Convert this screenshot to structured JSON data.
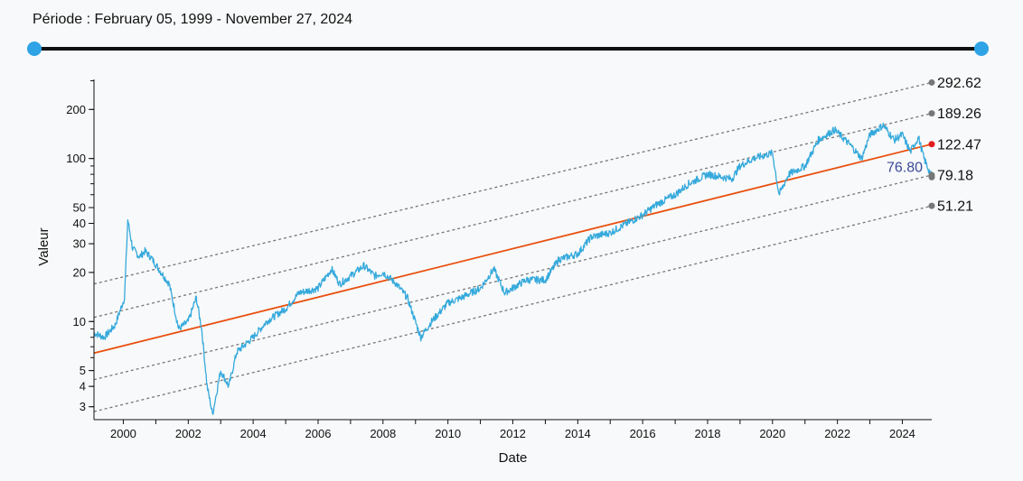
{
  "period": {
    "label": "Période : February 05, 1999 - November 27, 2024"
  },
  "colors": {
    "price": "#34a9dc",
    "regression": "#e8500f",
    "band": "#777777",
    "top_marker": "#e21b1b",
    "current_label": "#3a4a9a",
    "slider_handle": "#2ea3e6"
  },
  "chart_data": {
    "type": "line",
    "title": "",
    "xlabel": "Date",
    "ylabel": "Valeur",
    "yscale": "log",
    "xlim": [
      "1999-02-05",
      "2024-11-27"
    ],
    "ylim": [
      2.5,
      330
    ],
    "x_ticks": [
      "2000",
      "2002",
      "2004",
      "2006",
      "2008",
      "2010",
      "2012",
      "2014",
      "2016",
      "2018",
      "2020",
      "2022",
      "2024"
    ],
    "y_ticks": [
      3,
      4,
      5,
      10,
      20,
      30,
      40,
      50,
      100,
      200
    ],
    "grid": false,
    "series": [
      {
        "role": "price",
        "x": [
          "1999-02-05",
          "1999-06-01",
          "1999-10-01",
          "2000-01-15",
          "2000-02-20",
          "2000-04-15",
          "2000-07-01",
          "2000-09-01",
          "2000-11-01",
          "2001-03-01",
          "2001-06-01",
          "2001-09-15",
          "2002-01-01",
          "2002-04-01",
          "2002-06-01",
          "2002-08-01",
          "2002-10-01",
          "2003-01-01",
          "2003-04-01",
          "2003-07-01",
          "2004-01-01",
          "2004-06-01",
          "2005-01-01",
          "2005-06-01",
          "2006-01-01",
          "2006-06-01",
          "2006-09-01",
          "2007-01-01",
          "2007-06-01",
          "2007-10-01",
          "2008-01-01",
          "2008-06-01",
          "2008-10-01",
          "2009-03-01",
          "2009-07-01",
          "2010-01-01",
          "2010-06-01",
          "2011-01-01",
          "2011-06-01",
          "2011-10-01",
          "2012-06-01",
          "2013-01-01",
          "2013-06-01",
          "2014-01-01",
          "2014-06-01",
          "2015-01-01",
          "2015-06-01",
          "2016-01-01",
          "2016-06-01",
          "2017-01-01",
          "2017-06-01",
          "2018-01-01",
          "2018-10-01",
          "2019-01-01",
          "2019-06-01",
          "2020-01-01",
          "2020-03-15",
          "2020-07-01",
          "2021-01-01",
          "2021-06-01",
          "2021-12-01",
          "2022-06-01",
          "2022-10-01",
          "2023-01-01",
          "2023-06-01",
          "2023-10-01",
          "2024-01-01",
          "2024-04-01",
          "2024-07-01",
          "2024-09-01",
          "2024-11-27"
        ],
        "y": [
          8.5,
          8,
          9.5,
          14,
          42,
          28,
          25,
          27,
          25,
          20,
          17,
          9,
          10,
          14,
          9,
          4,
          2.7,
          5,
          4,
          6.5,
          8,
          10,
          12,
          15,
          16,
          21,
          17,
          19,
          22,
          19,
          20,
          17,
          14,
          8,
          10,
          13,
          14,
          16,
          21,
          15,
          18,
          18,
          24,
          26,
          33,
          35,
          39,
          45,
          52,
          60,
          70,
          80,
          75,
          90,
          100,
          108,
          60,
          80,
          90,
          130,
          150,
          120,
          100,
          140,
          160,
          130,
          140,
          110,
          135,
          100,
          76.8
        ]
      }
    ],
    "regression": {
      "start": {
        "x": "1999-02-05",
        "y": 6.4
      },
      "end": {
        "x": "2024-11-27",
        "y": 122.47
      }
    },
    "bands": [
      {
        "start_y": 17.0,
        "end_y": 292.62,
        "label": "292.62"
      },
      {
        "start_y": 10.6,
        "end_y": 189.26,
        "label": "189.26"
      },
      {
        "start_y": 6.4,
        "end_y": 122.47,
        "label": "122.47"
      },
      {
        "start_y": 4.4,
        "end_y": 79.18,
        "label": "79.18"
      },
      {
        "start_y": 2.8,
        "end_y": 51.21,
        "label": "51.21"
      }
    ],
    "current_value_label": "76.80"
  }
}
